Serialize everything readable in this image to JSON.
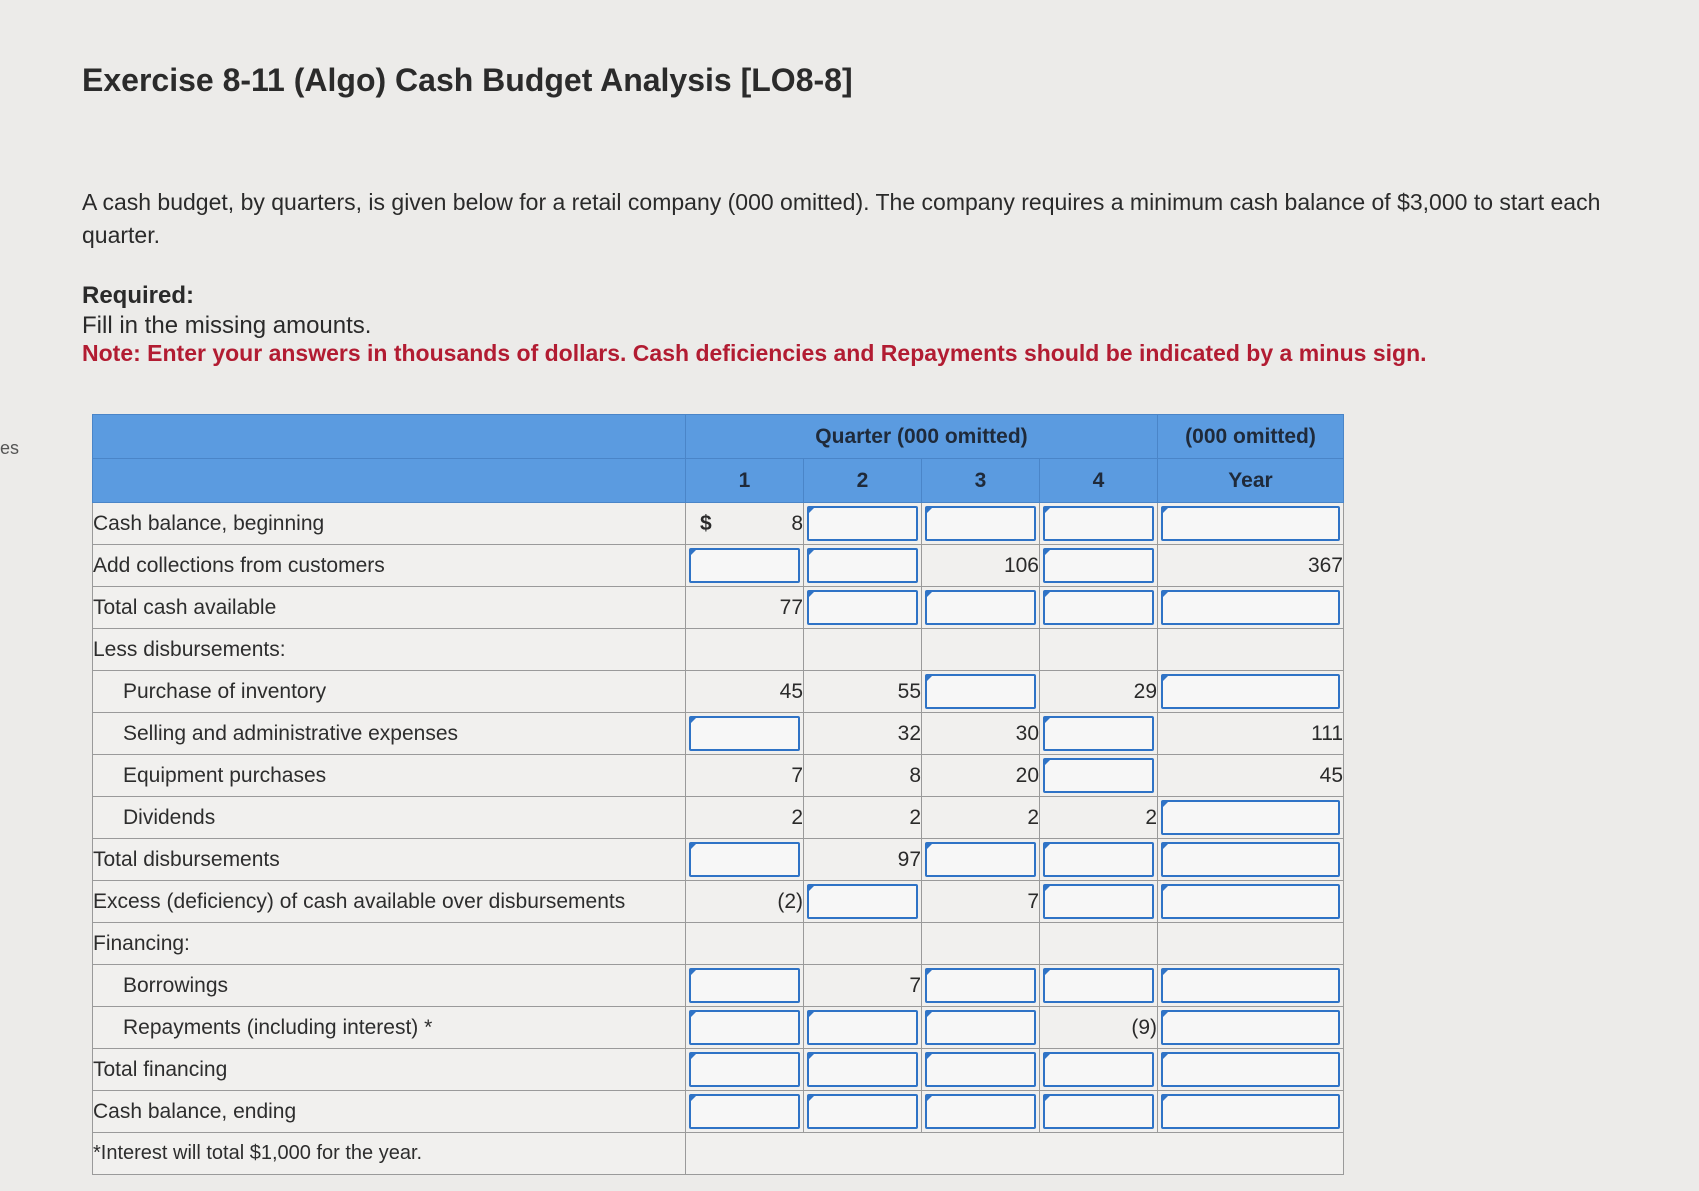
{
  "side_fragment": "es",
  "title": "Exercise 8-11 (Algo) Cash Budget Analysis [LO8-8]",
  "intro": "A cash budget, by quarters, is given below for a retail company (000 omitted). The company requires a minimum cash balance of $3,000 to start each quarter.",
  "required_label": "Required:",
  "required_text": "Fill in the missing amounts.",
  "note": "Note: Enter your answers in thousands of dollars. Cash deficiencies and Repayments should be indicated by a minus sign.",
  "table": {
    "header_group": "Quarter (000 omitted)",
    "header_year_group": "(000 omitted)",
    "columns": [
      "1",
      "2",
      "3",
      "4",
      "Year"
    ],
    "dollar_sign": "$",
    "footnote": "*Interest will total $1,000 for the year.",
    "rows": [
      {
        "label": "Cash balance, beginning",
        "cells": [
          "8",
          "",
          "",
          "",
          ""
        ]
      },
      {
        "label": "Add collections from customers",
        "cells": [
          "",
          "",
          "106",
          "",
          "367"
        ]
      },
      {
        "label": "Total cash available",
        "cells": [
          "77",
          "",
          "",
          "",
          ""
        ]
      },
      {
        "label": "Less disbursements:",
        "cells": null
      },
      {
        "label": "Purchase of inventory",
        "cells": [
          "45",
          "55",
          "",
          "29",
          ""
        ]
      },
      {
        "label": "Selling and administrative expenses",
        "cells": [
          "",
          "32",
          "30",
          "",
          "111"
        ]
      },
      {
        "label": "Equipment purchases",
        "cells": [
          "7",
          "8",
          "20",
          "",
          "45"
        ]
      },
      {
        "label": "Dividends",
        "cells": [
          "2",
          "2",
          "2",
          "2",
          ""
        ]
      },
      {
        "label": "Total disbursements",
        "cells": [
          "",
          "97",
          "",
          "",
          ""
        ]
      },
      {
        "label": "Excess (deficiency) of cash available over disbursements",
        "cells": [
          "(2)",
          "",
          "7",
          "",
          ""
        ]
      },
      {
        "label": "Financing:",
        "cells": null
      },
      {
        "label": "Borrowings",
        "cells": [
          "",
          "7",
          "",
          "",
          ""
        ]
      },
      {
        "label": "Repayments (including interest) *",
        "cells": [
          "",
          "",
          "",
          "(9)",
          ""
        ]
      },
      {
        "label": "Total financing",
        "cells": [
          "",
          "",
          "",
          "",
          ""
        ]
      },
      {
        "label": "Cash balance, ending",
        "cells": [
          "",
          "",
          "",
          "",
          ""
        ]
      }
    ]
  }
}
